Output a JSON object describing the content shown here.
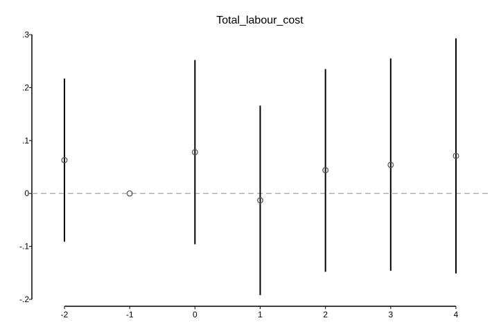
{
  "chart_data": {
    "type": "scatter",
    "title": "Total_labour_cost",
    "xlabel": "",
    "ylabel": "",
    "x_ticks": [
      -2,
      -1,
      0,
      1,
      2,
      3,
      4
    ],
    "y_ticks": [
      -0.2,
      -0.1,
      0,
      0.1,
      0.2,
      0.3
    ],
    "y_tick_labels": [
      "-.2",
      "-.1",
      "0",
      ".1",
      ".2",
      ".3"
    ],
    "xlim": [
      -2,
      4
    ],
    "ylim": [
      -0.2,
      0.3
    ],
    "reference_line_y": 0,
    "points": [
      {
        "x": -2,
        "y": 0.063,
        "lo": -0.091,
        "hi": 0.217
      },
      {
        "x": -1,
        "y": 0.0,
        "lo": null,
        "hi": null
      },
      {
        "x": 0,
        "y": 0.078,
        "lo": -0.096,
        "hi": 0.252
      },
      {
        "x": 1,
        "y": -0.013,
        "lo": -0.192,
        "hi": 0.166
      },
      {
        "x": 2,
        "y": 0.044,
        "lo": -0.148,
        "hi": 0.235
      },
      {
        "x": 3,
        "y": 0.054,
        "lo": -0.146,
        "hi": 0.255
      },
      {
        "x": 4,
        "y": 0.071,
        "lo": -0.151,
        "hi": 0.293
      }
    ],
    "colors": {
      "marker": "#555555",
      "ci": "#000000",
      "reference": "#999999",
      "axis": "#000000"
    }
  }
}
